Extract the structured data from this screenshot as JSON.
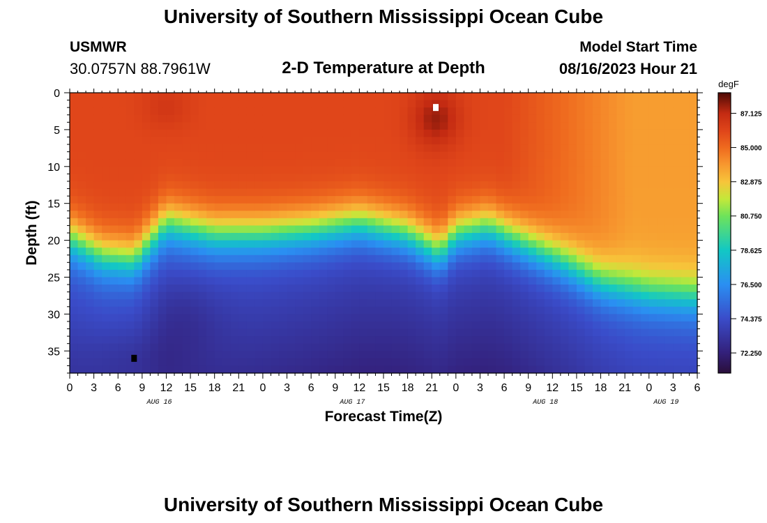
{
  "header": {
    "title": "University of Southern Mississippi Ocean Cube",
    "station": "USMWR",
    "coords": "30.0757N  88.7961W",
    "subtitle": "2-D Temperature at Depth",
    "model_start_label": "Model Start Time",
    "model_start_value": "08/16/2023 Hour 21"
  },
  "footer": {
    "title": "University of Southern Mississippi Ocean Cube"
  },
  "chart_data": {
    "type": "heatmap",
    "title": "2-D Temperature at Depth",
    "xlabel": "Forecast Time(Z)",
    "ylabel": "Depth (ft)",
    "x_range_hours": [
      0,
      78
    ],
    "x_tick_labels": [
      "0",
      "3",
      "6",
      "9",
      "12",
      "15",
      "18",
      "21",
      "0",
      "3",
      "6",
      "9",
      "12",
      "15",
      "18",
      "21",
      "0",
      "3",
      "6",
      "9",
      "12",
      "15",
      "18",
      "21",
      "0",
      "3",
      "6"
    ],
    "date_labels": [
      {
        "label": "AUG 16",
        "hour": 12
      },
      {
        "label": "AUG 17",
        "hour": 36
      },
      {
        "label": "AUG 18",
        "hour": 60
      },
      {
        "label": "AUG 19",
        "hour": 75
      }
    ],
    "y_range_ft": [
      0,
      38
    ],
    "y_tick_labels": [
      "0",
      "5",
      "10",
      "15",
      "20",
      "25",
      "30",
      "35"
    ],
    "colorbar": {
      "units": "degF",
      "range": [
        71.0,
        88.4
      ],
      "tick_labels": [
        "87.125",
        "85.000",
        "82.875",
        "80.750",
        "78.625",
        "76.500",
        "74.375",
        "72.250"
      ],
      "tick_values": [
        87.125,
        85.0,
        82.875,
        80.75,
        78.625,
        76.5,
        74.375,
        72.25
      ],
      "colormap_stops": [
        {
          "v": 71.0,
          "color": "#2a0f3a"
        },
        {
          "v": 72.25,
          "color": "#33207a"
        },
        {
          "v": 74.375,
          "color": "#3a4cc9"
        },
        {
          "v": 76.5,
          "color": "#2a8ff2"
        },
        {
          "v": 78.625,
          "color": "#12c8c4"
        },
        {
          "v": 80.75,
          "color": "#6ee35a"
        },
        {
          "v": 81.8,
          "color": "#c3e83a"
        },
        {
          "v": 82.875,
          "color": "#f7c43a"
        },
        {
          "v": 84.0,
          "color": "#f7952e"
        },
        {
          "v": 85.0,
          "color": "#ef6a1e"
        },
        {
          "v": 86.0,
          "color": "#e0461a"
        },
        {
          "v": 87.125,
          "color": "#c42b12"
        },
        {
          "v": 88.4,
          "color": "#4e0a05"
        }
      ]
    },
    "thermocline_ft": [
      {
        "hour": 0,
        "depth": 18.5
      },
      {
        "hour": 4,
        "depth": 21.0
      },
      {
        "hour": 8,
        "depth": 21.5
      },
      {
        "hour": 12,
        "depth": 16.5
      },
      {
        "hour": 18,
        "depth": 18.0
      },
      {
        "hour": 24,
        "depth": 18.0
      },
      {
        "hour": 30,
        "depth": 17.5
      },
      {
        "hour": 36,
        "depth": 16.5
      },
      {
        "hour": 42,
        "depth": 18.0
      },
      {
        "hour": 46,
        "depth": 20.5
      },
      {
        "hour": 48,
        "depth": 18.0
      },
      {
        "hour": 52,
        "depth": 17.0
      },
      {
        "hour": 56,
        "depth": 19.0
      },
      {
        "hour": 62,
        "depth": 22.0
      },
      {
        "hour": 66,
        "depth": 24.5
      },
      {
        "hour": 72,
        "depth": 26.0
      },
      {
        "hour": 78,
        "depth": 26.5
      }
    ],
    "markers": [
      {
        "name": "max-temp-marker",
        "hour": 45.5,
        "depth": 2.0,
        "color": "#ffffff"
      },
      {
        "name": "min-temp-marker",
        "hour": 8.0,
        "depth": 36.0,
        "color": "#000000"
      }
    ]
  }
}
